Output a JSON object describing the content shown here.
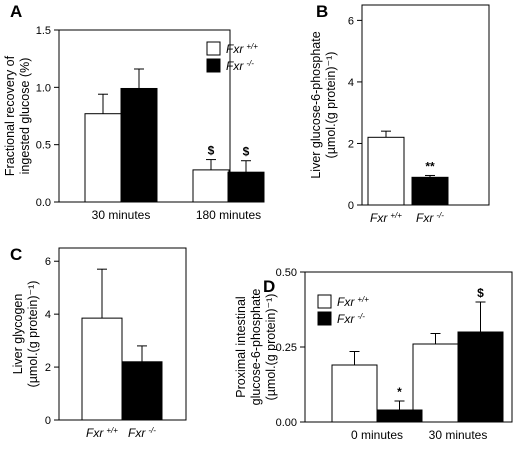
{
  "chart_data": [
    {
      "panel": "A",
      "type": "bar",
      "ylabel": [
        "Fractional recovery of",
        "ingested glucose (%)"
      ],
      "ylim": [
        0,
        1.5
      ],
      "yticks": [
        "0.0",
        "0.5",
        "1.0",
        "1.5"
      ],
      "categories": [
        "30 minutes",
        "180 minutes"
      ],
      "legend": {
        "placement": "top-right",
        "entries": [
          {
            "base": "Fxr",
            "sup": "+/+"
          },
          {
            "base": "Fxr",
            "sup": "-/-"
          }
        ]
      },
      "series": [
        {
          "fill": "#ffffff",
          "values": [
            0.77,
            0.28
          ],
          "errors": [
            0.17,
            0.09
          ]
        },
        {
          "fill": "#000000",
          "values": [
            0.99,
            0.26
          ],
          "errors": [
            0.17,
            0.1
          ]
        }
      ],
      "annotations": [
        {
          "text": "$",
          "category": 1,
          "series": 0
        },
        {
          "text": "$",
          "category": 1,
          "series": 1
        }
      ]
    },
    {
      "panel": "B",
      "type": "bar",
      "ylabel": [
        "Liver glucose-6-phosphate",
        "(µmol.(g protein)⁻¹)"
      ],
      "ylim": [
        0,
        6.5
      ],
      "yticks": [
        "0",
        "2",
        "4",
        "6"
      ],
      "categories": [
        {
          "base": "Fxr",
          "sup": "+/+"
        },
        {
          "base": "Fxr",
          "sup": "-/-"
        }
      ],
      "series": [
        {
          "fills": [
            "#ffffff",
            "#000000"
          ],
          "values": [
            2.2,
            0.9
          ],
          "errors": [
            0.2,
            0.06
          ]
        }
      ],
      "annotations": [
        {
          "text": "**",
          "category": 1
        }
      ]
    },
    {
      "panel": "C",
      "type": "bar",
      "ylabel": [
        "Liver glycogen",
        "(µmol.(g protein)⁻¹)"
      ],
      "ylim": [
        0,
        6.5
      ],
      "yticks": [
        "0",
        "2",
        "4",
        "6"
      ],
      "categories": [
        {
          "base": "Fxr",
          "sup": "+/+"
        },
        {
          "base": "Fxr",
          "sup": "-/-"
        }
      ],
      "series": [
        {
          "fills": [
            "#ffffff",
            "#000000"
          ],
          "values": [
            3.85,
            2.2
          ],
          "errors": [
            1.85,
            0.6
          ]
        }
      ]
    },
    {
      "panel": "D",
      "type": "bar",
      "ylabel": [
        "Proximal intestinal",
        "glucose-6-phosphate",
        "(µmol.(g protein)⁻¹)"
      ],
      "ylim": [
        0,
        0.5
      ],
      "yticks": [
        "0.00",
        "0.25",
        "0.50"
      ],
      "categories": [
        "0 minutes",
        "30 minutes"
      ],
      "legend": {
        "placement": "top-left",
        "entries": [
          {
            "base": "Fxr",
            "sup": "+/+"
          },
          {
            "base": "Fxr",
            "sup": "-/-"
          }
        ]
      },
      "series": [
        {
          "fill": "#ffffff",
          "values": [
            0.19,
            0.26
          ],
          "errors": [
            0.045,
            0.035
          ]
        },
        {
          "fill": "#000000",
          "values": [
            0.04,
            0.3
          ],
          "errors": [
            0.03,
            0.1
          ]
        }
      ],
      "annotations": [
        {
          "text": "*",
          "category": 0,
          "series": 1
        },
        {
          "text": "$",
          "category": 1,
          "series": 1
        }
      ]
    }
  ]
}
